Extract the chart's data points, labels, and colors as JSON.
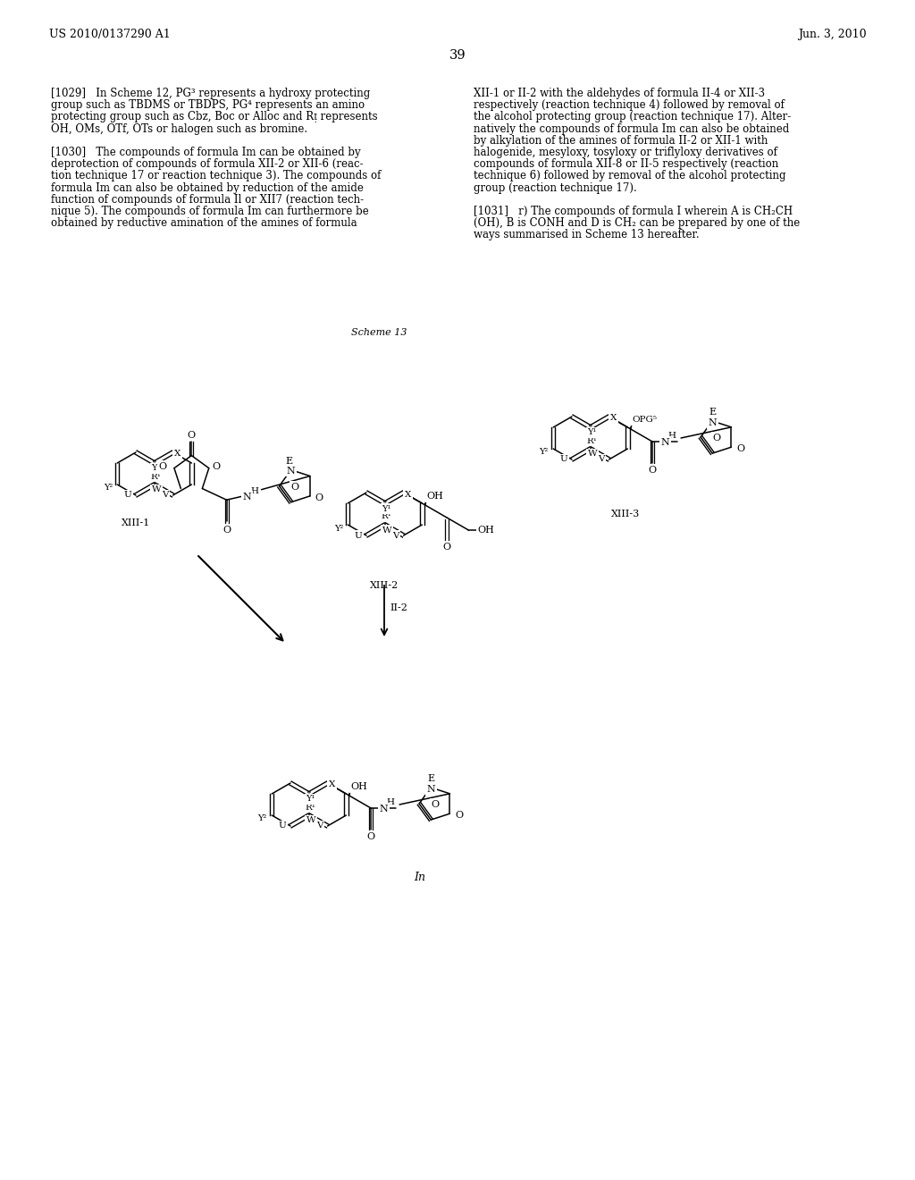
{
  "page_header_left": "US 2010/0137290 A1",
  "page_header_right": "Jun. 3, 2010",
  "page_number": "39",
  "background_color": "#ffffff",
  "scheme_label": "Scheme 13",
  "lc_lines": [
    "[1029]   In Scheme 12, PG³ represents a hydroxy protecting",
    "group such as TBDMS or TBDPS, PG⁴ represents an amino",
    "protecting group such as Cbz, Boc or Alloc and Rᴉ represents",
    "OH, OMs, OTf, OTs or halogen such as bromine.",
    "",
    "[1030]   The compounds of formula Im can be obtained by",
    "deprotection of compounds of formula XII-2 or XII-6 (reac-",
    "tion technique 17 or reaction technique 3). The compounds of",
    "formula Im can also be obtained by reduction of the amide",
    "function of compounds of formula Il or XII7 (reaction tech-",
    "nique 5). The compounds of formula Im can furthermore be",
    "obtained by reductive amination of the amines of formula"
  ],
  "rc_lines": [
    "XII-1 or II-2 with the aldehydes of formula II-4 or XII-3",
    "respectively (reaction technique 4) followed by removal of",
    "the alcohol protecting group (reaction technique 17). Alter-",
    "natively the compounds of formula Im can also be obtained",
    "by alkylation of the amines of formula II-2 or XII-1 with",
    "halogenide, mesyloxy, tosyloxy or triflyloxy derivatives of",
    "compounds of formula XII-8 or II-5 respectively (reaction",
    "technique 6) followed by removal of the alcohol protecting",
    "group (reaction technique 17).",
    "",
    "[1031]   r) The compounds of formula I wherein A is CH₂CH",
    "(OH), B is CONH and D is CH₂ can be prepared by one of the",
    "ways summarised in Scheme 13 hereafter."
  ]
}
